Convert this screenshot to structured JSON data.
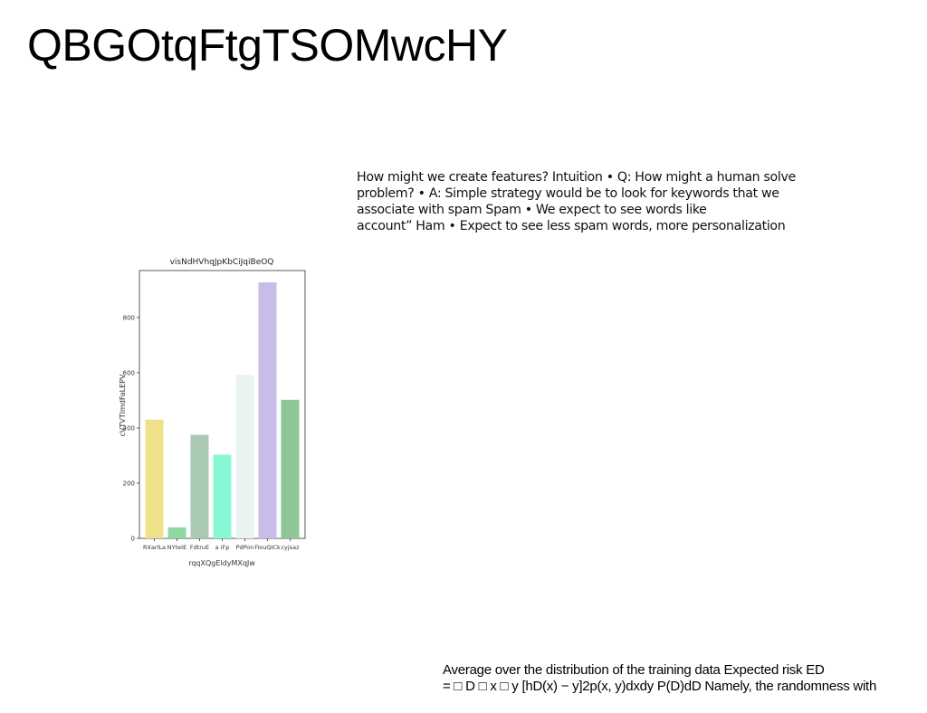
{
  "slide": {
    "title": "QBGOtqFtgTSOMwcHY"
  },
  "body_lines": [
    "How might we create features? Intuition • Q: How might a human solve",
    "problem? • A: Simple strategy would be to look for keywords that we",
    "associate with spam Spam • We expect to see words like",
    "account” Ham • Expect to see less spam words, more personalization"
  ],
  "footer_lines": [
    "Average over the distribution of the training data Expected risk ED",
    "= □ D □ x □ y [hD(x) − y]2p(x, y)dxdy P(D)dD Namely, the randomness with"
  ],
  "chart_data": {
    "type": "bar",
    "title": "visNdHVhqJpKbCiJqiBeOQ",
    "xlabel": "rqqXQgEldyMXqJw",
    "ylabel": "cVTVTImdFaLEPV",
    "categories": [
      "RXarlLa",
      "NYteIE",
      "FdtruE",
      "a iFp",
      "PdPon",
      "FiouQICk",
      "cyjsaz"
    ],
    "values": [
      430,
      40,
      375,
      303,
      592,
      927,
      502
    ],
    "colors": [
      "#efe08a",
      "#8fd8a0",
      "#a9c9b2",
      "#88f7d6",
      "#e8f3f2",
      "#c9bce6",
      "#8fc697"
    ],
    "ylim": [
      0,
      970
    ],
    "yticks": [
      0,
      200,
      400,
      600,
      800
    ],
    "grid": false,
    "legend": "none"
  }
}
